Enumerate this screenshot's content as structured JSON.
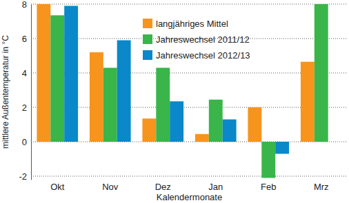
{
  "chart_data": {
    "type": "bar",
    "x_label": "Kalendermonate",
    "y_label": "mittlere Außentemperatur in °C",
    "categories": [
      "Okt",
      "Nov",
      "Dez",
      "Jan",
      "Feb",
      "Mrz"
    ],
    "series": [
      {
        "name": "langjähriges Mittel",
        "color": "#f7941d",
        "values": [
          8.0,
          5.2,
          1.35,
          0.45,
          2.0,
          4.65
        ]
      },
      {
        "name": "Jahreswechsel 2011/12",
        "color": "#39b54a",
        "values": [
          7.35,
          4.3,
          4.3,
          2.45,
          -2.1,
          8.0
        ]
      },
      {
        "name": "Jahreswechsel 2012/13",
        "color": "#0a88c9",
        "values": [
          7.9,
          5.9,
          2.35,
          1.3,
          -0.7,
          null
        ]
      }
    ],
    "ylim": [
      -2.2,
      8
    ],
    "yticks": [
      -2,
      0,
      2,
      4,
      6,
      8
    ],
    "grid": true,
    "legend": "top"
  }
}
